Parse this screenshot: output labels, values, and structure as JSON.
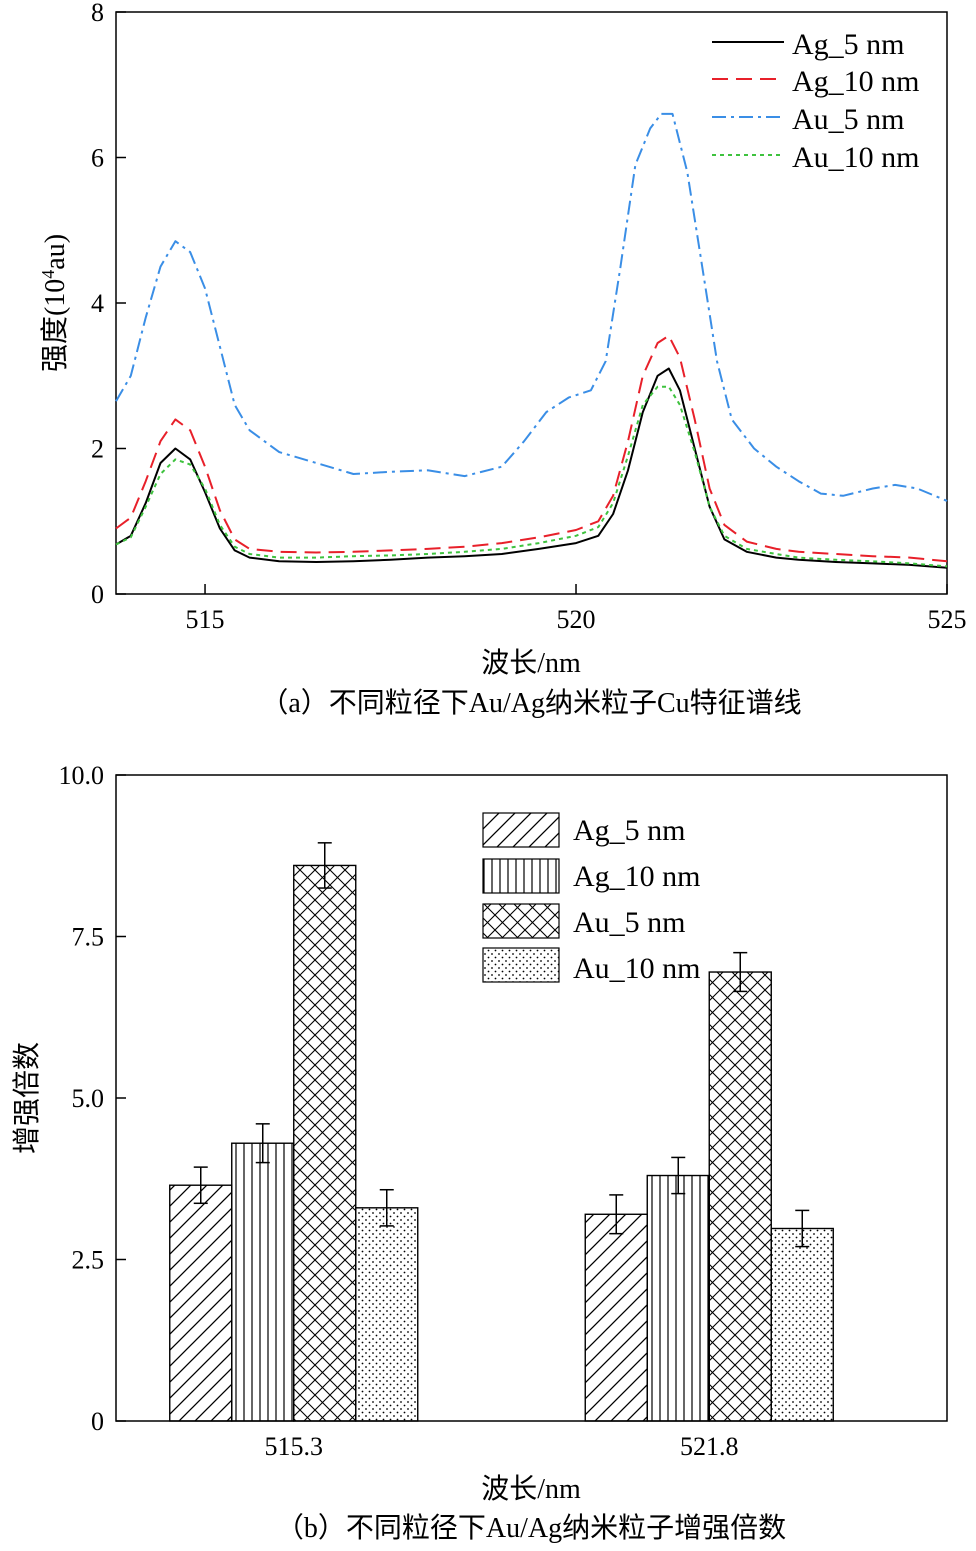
{
  "chart_data": [
    {
      "type": "line",
      "caption": "（a）不同粒径下Au/Ag纳米粒子Cu特征谱线",
      "xlabel": "波长/nm",
      "ylabel_main": "强度(10",
      "ylabel_sup": "4",
      "ylabel_tail": "au)",
      "xlim": [
        513.8,
        525
      ],
      "ylim": [
        0,
        8
      ],
      "xticks": [
        515,
        520,
        525
      ],
      "yticks": [
        0,
        2,
        4,
        6,
        8
      ],
      "legend_position": "top-right",
      "series": [
        {
          "name": "Ag_5 nm",
          "color": "#000000",
          "dash": "solid",
          "points": [
            [
              513.8,
              0.68
            ],
            [
              514.0,
              0.8
            ],
            [
              514.2,
              1.25
            ],
            [
              514.4,
              1.8
            ],
            [
              514.6,
              2.0
            ],
            [
              514.8,
              1.85
            ],
            [
              515.0,
              1.4
            ],
            [
              515.2,
              0.9
            ],
            [
              515.4,
              0.6
            ],
            [
              515.6,
              0.5
            ],
            [
              516,
              0.45
            ],
            [
              516.5,
              0.44
            ],
            [
              517,
              0.45
            ],
            [
              517.5,
              0.47
            ],
            [
              518,
              0.5
            ],
            [
              518.5,
              0.52
            ],
            [
              519,
              0.55
            ],
            [
              519.5,
              0.62
            ],
            [
              520,
              0.7
            ],
            [
              520.3,
              0.8
            ],
            [
              520.5,
              1.1
            ],
            [
              520.7,
              1.7
            ],
            [
              520.9,
              2.5
            ],
            [
              521.1,
              3.0
            ],
            [
              521.25,
              3.1
            ],
            [
              521.4,
              2.8
            ],
            [
              521.6,
              2.0
            ],
            [
              521.8,
              1.2
            ],
            [
              522.0,
              0.75
            ],
            [
              522.3,
              0.58
            ],
            [
              522.7,
              0.5
            ],
            [
              523,
              0.47
            ],
            [
              523.5,
              0.44
            ],
            [
              524,
              0.42
            ],
            [
              524.5,
              0.4
            ],
            [
              525,
              0.36
            ]
          ]
        },
        {
          "name": "Ag_10 nm",
          "color": "#e8202a",
          "dash": "16 8",
          "points": [
            [
              513.8,
              0.9
            ],
            [
              514.0,
              1.05
            ],
            [
              514.2,
              1.55
            ],
            [
              514.4,
              2.1
            ],
            [
              514.6,
              2.4
            ],
            [
              514.8,
              2.25
            ],
            [
              515.0,
              1.75
            ],
            [
              515.2,
              1.15
            ],
            [
              515.4,
              0.75
            ],
            [
              515.6,
              0.62
            ],
            [
              516,
              0.58
            ],
            [
              516.5,
              0.57
            ],
            [
              517,
              0.58
            ],
            [
              517.5,
              0.6
            ],
            [
              518,
              0.62
            ],
            [
              518.5,
              0.65
            ],
            [
              519,
              0.7
            ],
            [
              519.5,
              0.78
            ],
            [
              520,
              0.88
            ],
            [
              520.3,
              1.0
            ],
            [
              520.5,
              1.35
            ],
            [
              520.7,
              2.1
            ],
            [
              520.9,
              3.0
            ],
            [
              521.1,
              3.45
            ],
            [
              521.25,
              3.55
            ],
            [
              521.4,
              3.25
            ],
            [
              521.6,
              2.4
            ],
            [
              521.8,
              1.45
            ],
            [
              522.0,
              0.95
            ],
            [
              522.3,
              0.72
            ],
            [
              522.7,
              0.62
            ],
            [
              523,
              0.58
            ],
            [
              523.5,
              0.55
            ],
            [
              524,
              0.52
            ],
            [
              524.5,
              0.5
            ],
            [
              525,
              0.45
            ]
          ]
        },
        {
          "name": "Au_5 nm",
          "color": "#3a8ee6",
          "dash": "14 5 3 5",
          "points": [
            [
              513.8,
              2.65
            ],
            [
              514.0,
              3.0
            ],
            [
              514.2,
              3.8
            ],
            [
              514.4,
              4.5
            ],
            [
              514.6,
              4.85
            ],
            [
              514.8,
              4.7
            ],
            [
              515.0,
              4.2
            ],
            [
              515.2,
              3.4
            ],
            [
              515.4,
              2.6
            ],
            [
              515.6,
              2.25
            ],
            [
              516,
              1.95
            ],
            [
              516.5,
              1.8
            ],
            [
              517,
              1.65
            ],
            [
              517.5,
              1.68
            ],
            [
              518,
              1.7
            ],
            [
              518.5,
              1.62
            ],
            [
              519,
              1.75
            ],
            [
              519.3,
              2.1
            ],
            [
              519.6,
              2.5
            ],
            [
              519.9,
              2.7
            ],
            [
              520.2,
              2.8
            ],
            [
              520.4,
              3.2
            ],
            [
              520.6,
              4.5
            ],
            [
              520.8,
              5.9
            ],
            [
              521.0,
              6.4
            ],
            [
              521.15,
              6.6
            ],
            [
              521.3,
              6.6
            ],
            [
              521.5,
              5.8
            ],
            [
              521.7,
              4.5
            ],
            [
              521.9,
              3.2
            ],
            [
              522.1,
              2.4
            ],
            [
              522.4,
              2.0
            ],
            [
              522.7,
              1.75
            ],
            [
              523,
              1.55
            ],
            [
              523.3,
              1.38
            ],
            [
              523.6,
              1.35
            ],
            [
              524,
              1.45
            ],
            [
              524.3,
              1.5
            ],
            [
              524.6,
              1.45
            ],
            [
              525,
              1.28
            ]
          ]
        },
        {
          "name": "Au_10 nm",
          "color": "#3ec23e",
          "dash": "4 4",
          "points": [
            [
              513.8,
              0.68
            ],
            [
              514.0,
              0.78
            ],
            [
              514.2,
              1.2
            ],
            [
              514.4,
              1.65
            ],
            [
              514.6,
              1.85
            ],
            [
              514.8,
              1.78
            ],
            [
              515.0,
              1.45
            ],
            [
              515.2,
              0.95
            ],
            [
              515.4,
              0.65
            ],
            [
              515.6,
              0.55
            ],
            [
              516,
              0.5
            ],
            [
              516.5,
              0.5
            ],
            [
              517,
              0.52
            ],
            [
              517.5,
              0.53
            ],
            [
              518,
              0.55
            ],
            [
              518.5,
              0.58
            ],
            [
              519,
              0.62
            ],
            [
              519.5,
              0.7
            ],
            [
              520,
              0.8
            ],
            [
              520.3,
              0.92
            ],
            [
              520.5,
              1.25
            ],
            [
              520.7,
              1.9
            ],
            [
              520.9,
              2.6
            ],
            [
              521.1,
              2.85
            ],
            [
              521.25,
              2.85
            ],
            [
              521.4,
              2.6
            ],
            [
              521.6,
              1.95
            ],
            [
              521.8,
              1.2
            ],
            [
              522.0,
              0.8
            ],
            [
              522.3,
              0.62
            ],
            [
              522.7,
              0.55
            ],
            [
              523,
              0.5
            ],
            [
              523.5,
              0.47
            ],
            [
              524,
              0.45
            ],
            [
              524.5,
              0.42
            ],
            [
              525,
              0.38
            ]
          ]
        }
      ]
    },
    {
      "type": "bar",
      "caption": "（b）不同粒径下Au/Ag纳米粒子增强倍数",
      "xlabel": "波长/nm",
      "ylabel": "增强倍数",
      "categories": [
        "515.3",
        "521.8"
      ],
      "ylim": [
        0,
        10
      ],
      "yticks": [
        "0",
        "2.5",
        "5.0",
        "7.5",
        "10.0"
      ],
      "legend_position": "top-right",
      "series": [
        {
          "name": "Ag_5 nm",
          "pattern": "diagonal",
          "values": [
            3.65,
            3.2
          ],
          "errors": [
            0.28,
            0.3
          ]
        },
        {
          "name": "Ag_10 nm",
          "pattern": "vertical",
          "values": [
            4.3,
            3.8
          ],
          "errors": [
            0.3,
            0.28
          ]
        },
        {
          "name": "Au_5 nm",
          "pattern": "crosshatch",
          "values": [
            8.6,
            6.95
          ],
          "errors": [
            0.35,
            0.3
          ]
        },
        {
          "name": "Au_10 nm",
          "pattern": "dots",
          "values": [
            3.3,
            2.98
          ],
          "errors": [
            0.28,
            0.28
          ]
        }
      ]
    }
  ]
}
